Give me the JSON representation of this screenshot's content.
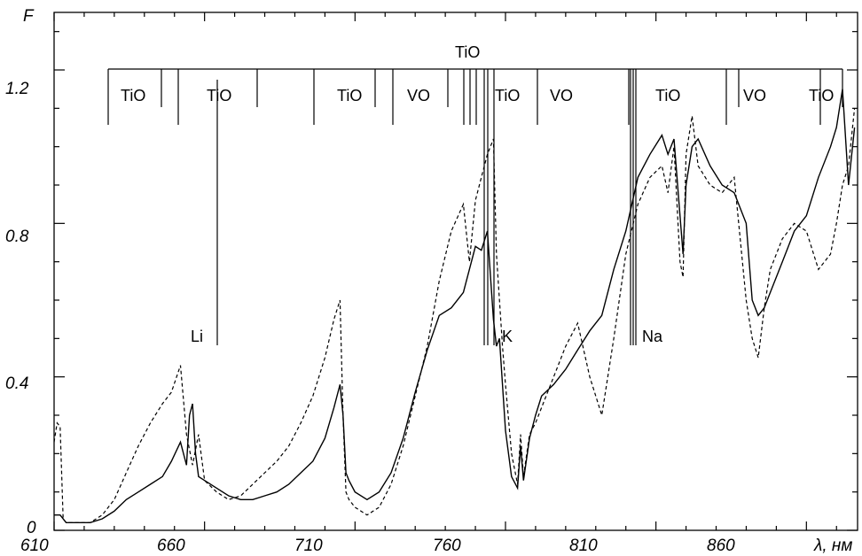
{
  "chart_data": {
    "type": "line",
    "ylabel": "F",
    "xlabel": "λ, нм",
    "xlim": [
      610,
      877
    ],
    "ylim": [
      0,
      1.35
    ],
    "x_ticks": [
      610,
      660,
      710,
      760,
      810,
      860
    ],
    "y_ticks": [
      0,
      0.4,
      0.8,
      1.2
    ],
    "y_tick_labels": [
      "0",
      "0.4",
      "0.8",
      "1.2"
    ],
    "grid": false,
    "series": [
      {
        "style": "solid",
        "x": [
          610,
          612,
          614,
          618,
          622,
          626,
          630,
          634,
          638,
          642,
          646,
          649,
          652,
          654,
          655,
          656,
          657,
          658,
          660,
          664,
          668,
          672,
          676,
          680,
          684,
          688,
          692,
          696,
          700,
          703,
          705,
          706,
          707,
          708,
          710,
          714,
          718,
          722,
          726,
          730,
          734,
          738,
          742,
          746,
          748,
          750,
          752,
          754,
          756,
          757,
          758,
          759,
          760,
          762,
          764,
          765,
          766,
          768,
          770,
          772,
          776,
          780,
          784,
          788,
          792,
          796,
          800,
          804,
          808,
          812,
          814,
          816,
          818,
          819,
          820,
          822,
          824,
          828,
          832,
          836,
          840,
          842,
          844,
          846,
          848,
          852,
          856,
          860,
          864,
          868,
          870,
          872,
          874,
          876
        ],
        "y": [
          0.04,
          0.04,
          0.02,
          0.02,
          0.02,
          0.03,
          0.05,
          0.08,
          0.1,
          0.12,
          0.14,
          0.18,
          0.23,
          0.17,
          0.3,
          0.33,
          0.2,
          0.14,
          0.13,
          0.11,
          0.09,
          0.08,
          0.08,
          0.09,
          0.1,
          0.12,
          0.15,
          0.18,
          0.24,
          0.32,
          0.38,
          0.3,
          0.15,
          0.13,
          0.1,
          0.08,
          0.1,
          0.15,
          0.24,
          0.36,
          0.47,
          0.56,
          0.58,
          0.62,
          0.68,
          0.74,
          0.73,
          0.78,
          0.55,
          0.48,
          0.5,
          0.38,
          0.26,
          0.14,
          0.11,
          0.22,
          0.13,
          0.24,
          0.3,
          0.35,
          0.38,
          0.42,
          0.47,
          0.52,
          0.56,
          0.68,
          0.78,
          0.92,
          0.98,
          1.03,
          0.98,
          1.02,
          0.82,
          0.72,
          0.9,
          1.0,
          1.02,
          0.95,
          0.9,
          0.88,
          0.8,
          0.6,
          0.56,
          0.58,
          0.62,
          0.7,
          0.78,
          0.82,
          0.92,
          1.0,
          1.05,
          1.15,
          0.9,
          1.05
        ]
      },
      {
        "style": "dashed",
        "x": [
          610,
          611,
          612,
          613,
          614,
          618,
          622,
          626,
          630,
          634,
          638,
          642,
          646,
          649,
          652,
          654,
          656,
          658,
          660,
          664,
          668,
          672,
          676,
          680,
          684,
          688,
          692,
          696,
          700,
          703,
          705,
          706,
          707,
          708,
          710,
          714,
          718,
          722,
          726,
          730,
          734,
          738,
          742,
          746,
          748,
          750,
          752,
          754,
          756,
          757,
          758,
          759,
          760,
          762,
          764,
          765,
          766,
          768,
          770,
          772,
          776,
          780,
          784,
          788,
          792,
          796,
          800,
          804,
          808,
          812,
          814,
          816,
          818,
          819,
          820,
          822,
          824,
          828,
          832,
          836,
          840,
          842,
          844,
          846,
          848,
          852,
          856,
          860,
          864,
          868,
          870,
          872,
          874,
          876
        ],
        "y": [
          0.23,
          0.28,
          0.27,
          0.03,
          0.02,
          0.02,
          0.02,
          0.04,
          0.08,
          0.15,
          0.22,
          0.28,
          0.33,
          0.36,
          0.43,
          0.25,
          0.17,
          0.25,
          0.13,
          0.1,
          0.08,
          0.09,
          0.12,
          0.15,
          0.18,
          0.22,
          0.28,
          0.35,
          0.45,
          0.55,
          0.6,
          0.3,
          0.1,
          0.08,
          0.06,
          0.04,
          0.06,
          0.12,
          0.22,
          0.35,
          0.48,
          0.65,
          0.78,
          0.85,
          0.7,
          0.86,
          0.92,
          0.98,
          1.02,
          0.72,
          0.6,
          0.48,
          0.38,
          0.2,
          0.12,
          0.25,
          0.14,
          0.25,
          0.28,
          0.32,
          0.4,
          0.48,
          0.54,
          0.4,
          0.3,
          0.5,
          0.72,
          0.85,
          0.92,
          0.95,
          0.88,
          1.0,
          0.7,
          0.66,
          0.98,
          1.08,
          0.95,
          0.9,
          0.88,
          0.92,
          0.6,
          0.5,
          0.45,
          0.58,
          0.68,
          0.76,
          0.8,
          0.78,
          0.68,
          0.72,
          0.8,
          0.9,
          0.95,
          1.1
        ]
      }
    ],
    "band_labels": {
      "top": "TiO",
      "bands": [
        "TiO",
        "TiO",
        "TiO",
        "VO",
        "TiO",
        "VO",
        "TiO",
        "VO",
        "TiO"
      ]
    },
    "line_labels": [
      "Li",
      "K",
      "Na"
    ]
  }
}
